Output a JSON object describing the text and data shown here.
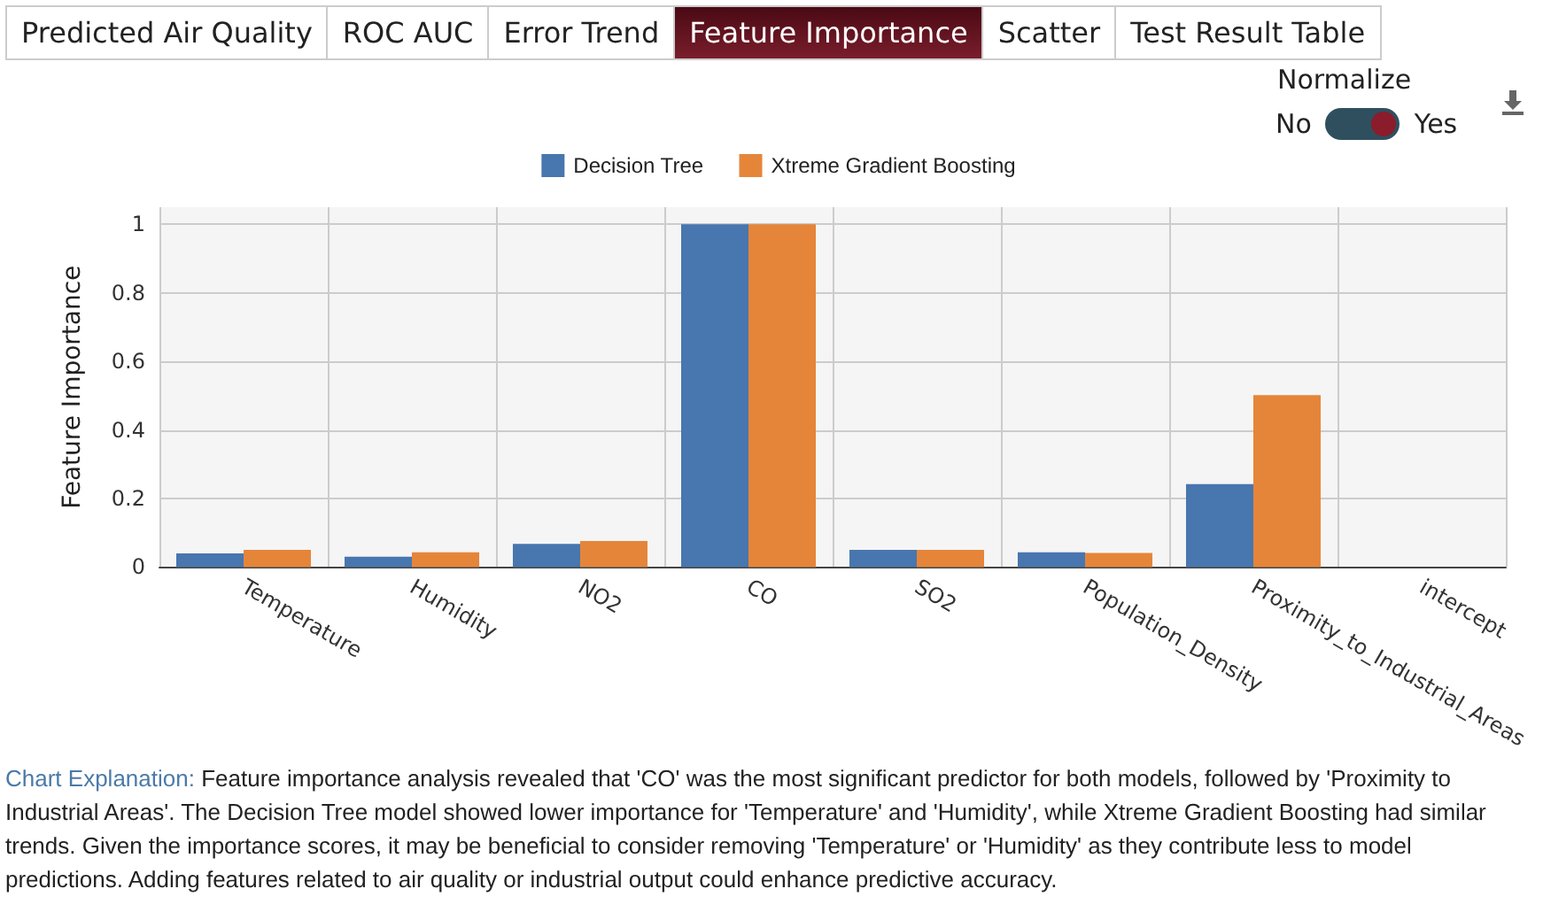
{
  "chart_data": {
    "type": "bar",
    "ylabel": "Feature Importance",
    "categories": [
      "Temperature",
      "Humidity",
      "NO2",
      "CO",
      "SO2",
      "Population_Density",
      "Proximity_to_Industrial_Areas",
      "intercept"
    ],
    "series": [
      {
        "name": "Decision Tree",
        "color": "#4876ae",
        "values": [
          0.04,
          0.03,
          0.068,
          1,
          0.05,
          0.043,
          0.242,
          0
        ]
      },
      {
        "name": "Xtreme Gradient Boosting",
        "color": "#e5853a",
        "values": [
          0.05,
          0.043,
          0.076,
          1,
          0.05,
          0.041,
          0.502,
          0
        ]
      }
    ],
    "ylim": [
      0,
      1.05
    ],
    "yticks": [
      0,
      0.2,
      0.4,
      0.6,
      0.8,
      1
    ],
    "grid": true,
    "legend": "top",
    "annotations": [
      "Predicted Air Quality",
      "ROC AUC",
      "Error Trend",
      "Feature Importance",
      "Scatter",
      "Test Result Table",
      "Normalize",
      "No",
      "Yes",
      "Chart Explanation:",
      "Feature importance analysis revealed that 'CO' was the most significant predictor for both models, followed by 'Proximity to Industrial Areas'. The Decision Tree model showed lower importance for 'Temperature' and 'Humidity', while Xtreme Gradient Boosting had similar trends. Given the importance scores, it may be beneficial to consider removing 'Temperature' or 'Humidity' as they contribute less to model predictions. Adding features related to air quality or industrial output could enhance predictive accuracy."
    ]
  }
}
